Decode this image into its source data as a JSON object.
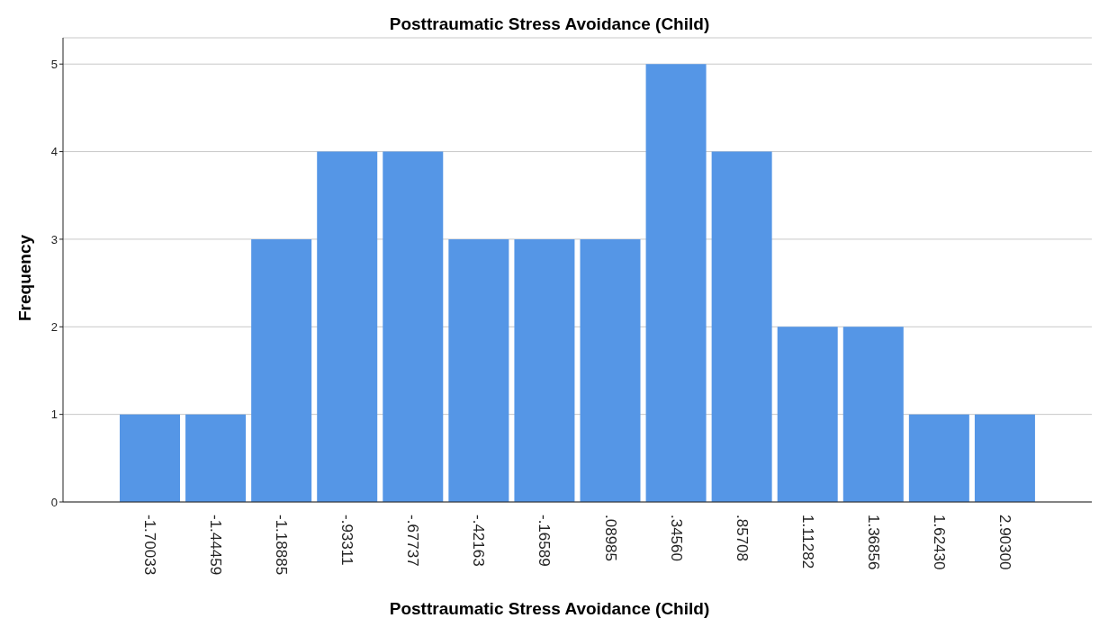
{
  "chart_data": {
    "type": "bar",
    "title": "Posttraumatic Stress Avoidance (Child)",
    "xlabel": "Posttraumatic Stress Avoidance (Child)",
    "ylabel": "Frequency",
    "categories": [
      "-1.70033",
      "-1.44459",
      "-1.18885",
      "-.93311",
      "-.67737",
      "-.42163",
      "-.16589",
      ".08985",
      ".34560",
      ".85708",
      "1.11282",
      "1.36856",
      "1.62430",
      "2.90300"
    ],
    "values": [
      1,
      1,
      3,
      4,
      4,
      3,
      3,
      3,
      5,
      4,
      2,
      2,
      1,
      1
    ],
    "color": "#5596e6",
    "ylim": [
      0,
      5.3
    ],
    "yticks": [
      0,
      1,
      2,
      3,
      4,
      5
    ],
    "grid": "y"
  }
}
